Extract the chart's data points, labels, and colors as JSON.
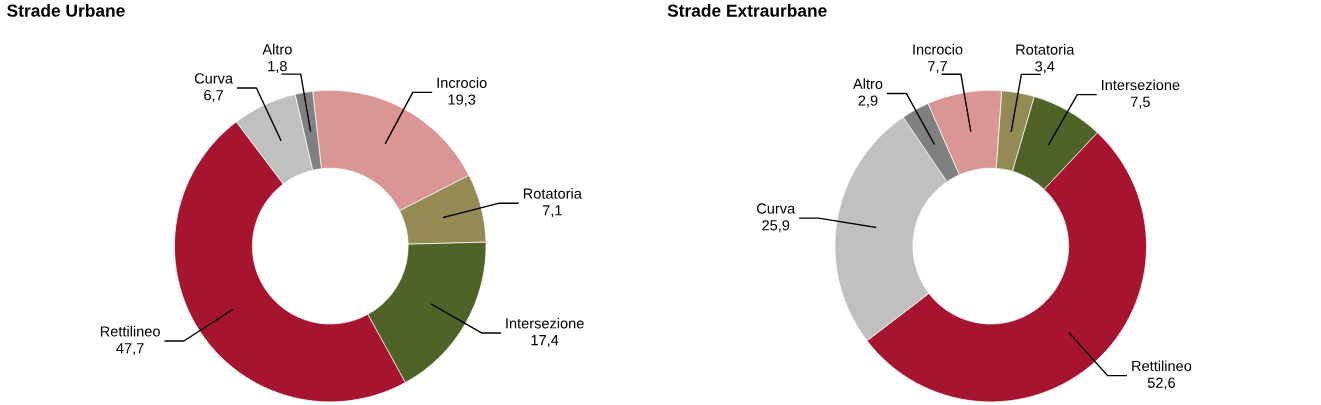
{
  "chart_data": [
    {
      "type": "donut",
      "title": "Strade Urbane",
      "categories": [
        "Incrocio",
        "Rotatoria",
        "Intersezione",
        "Rettilineo",
        "Curva",
        "Altro"
      ],
      "values": [
        19.3,
        7.1,
        17.4,
        47.7,
        6.7,
        1.8
      ],
      "value_labels": [
        "19,3",
        "7,1",
        "17,4",
        "47,7",
        "6,7",
        "1,8"
      ],
      "colors": [
        "#d99694",
        "#948a54",
        "#4f6228",
        "#a6142f",
        "#c0c0c0",
        "#808080"
      ]
    },
    {
      "type": "donut",
      "title": "Strade Extraurbane",
      "categories": [
        "Rotatoria",
        "Intersezione",
        "Rettilineo",
        "Curva",
        "Altro",
        "Incrocio"
      ],
      "values": [
        3.4,
        7.5,
        52.6,
        25.9,
        2.9,
        7.7
      ],
      "value_labels": [
        "3,4",
        "7,5",
        "52,6",
        "25,9",
        "2,9",
        "7,7"
      ],
      "colors": [
        "#948a54",
        "#4f6228",
        "#a6142f",
        "#c0c0c0",
        "#808080",
        "#d99694"
      ]
    }
  ]
}
